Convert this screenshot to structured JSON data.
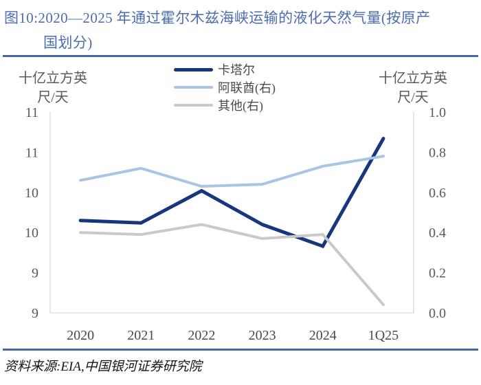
{
  "figure": {
    "title_line1": "图10:2020—2025 年通过霍尔木兹海峡运输的液化天然气量(按原产",
    "title_line2": "国划分)",
    "source": "资料来源:EIA,中国银河证券研究院",
    "title_color": "#4D6CB0",
    "rule_color": "#4566A6"
  },
  "chart_data": {
    "type": "line",
    "title": "2020—2025 年通过霍尔木兹海峡运输的液化天然气量(按原产国划分)",
    "categories": [
      "2020",
      "2021",
      "2022",
      "2023",
      "2024",
      "1Q25"
    ],
    "series": [
      {
        "name": "卡塔尔",
        "axis": "left",
        "color": "#17367E",
        "line_width": 5,
        "values": [
          9.65,
          9.62,
          10.02,
          9.6,
          9.33,
          10.67
        ]
      },
      {
        "name": "阿联酋(右)",
        "axis": "right",
        "color": "#A9C4E6",
        "line_width": 4,
        "values": [
          0.66,
          0.72,
          0.63,
          0.64,
          0.73,
          0.78
        ]
      },
      {
        "name": "其他(右)",
        "axis": "right",
        "color": "#C9C9C9",
        "line_width": 4,
        "values": [
          0.4,
          0.39,
          0.44,
          0.37,
          0.39,
          0.04
        ]
      }
    ],
    "left_axis": {
      "unit_line1": "十亿立方英",
      "unit_line2": "尺/天",
      "min": 8.5,
      "max": 11,
      "tick_values": [
        11,
        10.5,
        10,
        9.5,
        9,
        8.5
      ],
      "tick_labels": [
        "11",
        "11",
        "10",
        "10",
        "9",
        "9"
      ]
    },
    "right_axis": {
      "unit_line1": "十亿立方英",
      "unit_line2": "尺/天",
      "min": 0,
      "max": 1,
      "tick_values": [
        1.0,
        0.8,
        0.6,
        0.4,
        0.2,
        0.0
      ],
      "tick_labels": [
        "1.0",
        "0.8",
        "0.6",
        "0.4",
        "0.2",
        "0.0"
      ]
    },
    "grid": false,
    "legend_position": "top-center",
    "axis_line_color": "#D9D9D9"
  }
}
